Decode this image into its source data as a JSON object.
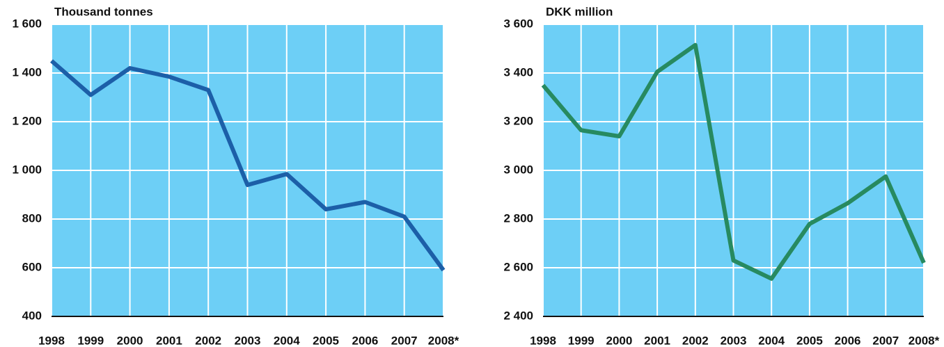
{
  "chart_data": [
    {
      "type": "line",
      "y_label": "Thousand tonnes",
      "categories": [
        "1998",
        "1999",
        "2000",
        "2001",
        "2002",
        "2003",
        "2004",
        "2005",
        "2006",
        "2007",
        "2008*"
      ],
      "series": [
        {
          "name": "Thousand tonnes",
          "color": "#1c5fa8",
          "values": [
            1450,
            1310,
            1420,
            1385,
            1330,
            940,
            985,
            840,
            870,
            810,
            590
          ]
        }
      ],
      "ylim": [
        400,
        1600
      ],
      "yticks": [
        400,
        {
          "value": 600,
          "label": "600"
        },
        800,
        {
          "value": 1000,
          "label": "1 000"
        },
        {
          "value": 1200,
          "label": "1 200"
        },
        {
          "value": 1400,
          "label": "1 400"
        },
        {
          "value": 1600,
          "label": "1 600"
        }
      ],
      "grid": true,
      "background": "#6dcff6"
    },
    {
      "type": "line",
      "y_label": "DKK million",
      "categories": [
        "1998",
        "1999",
        "2000",
        "2001",
        "2002",
        "2003",
        "2004",
        "2005",
        "2006",
        "2007",
        "2008*"
      ],
      "series": [
        {
          "name": "DKK million",
          "color": "#278a60",
          "values": [
            3350,
            3165,
            3140,
            3405,
            3515,
            2630,
            2555,
            2780,
            2865,
            2975,
            2620
          ]
        }
      ],
      "ylim": [
        2400,
        3600
      ],
      "yticks": [
        {
          "value": 2400,
          "label": "2 400"
        },
        {
          "value": 2600,
          "label": "2 600"
        },
        {
          "value": 2800,
          "label": "2 800"
        },
        {
          "value": 3000,
          "label": "3 000"
        },
        {
          "value": 3200,
          "label": "3 200"
        },
        {
          "value": 3400,
          "label": "3 400"
        },
        {
          "value": 3600,
          "label": "3 600"
        }
      ],
      "grid": true,
      "background": "#6dcff6"
    }
  ]
}
